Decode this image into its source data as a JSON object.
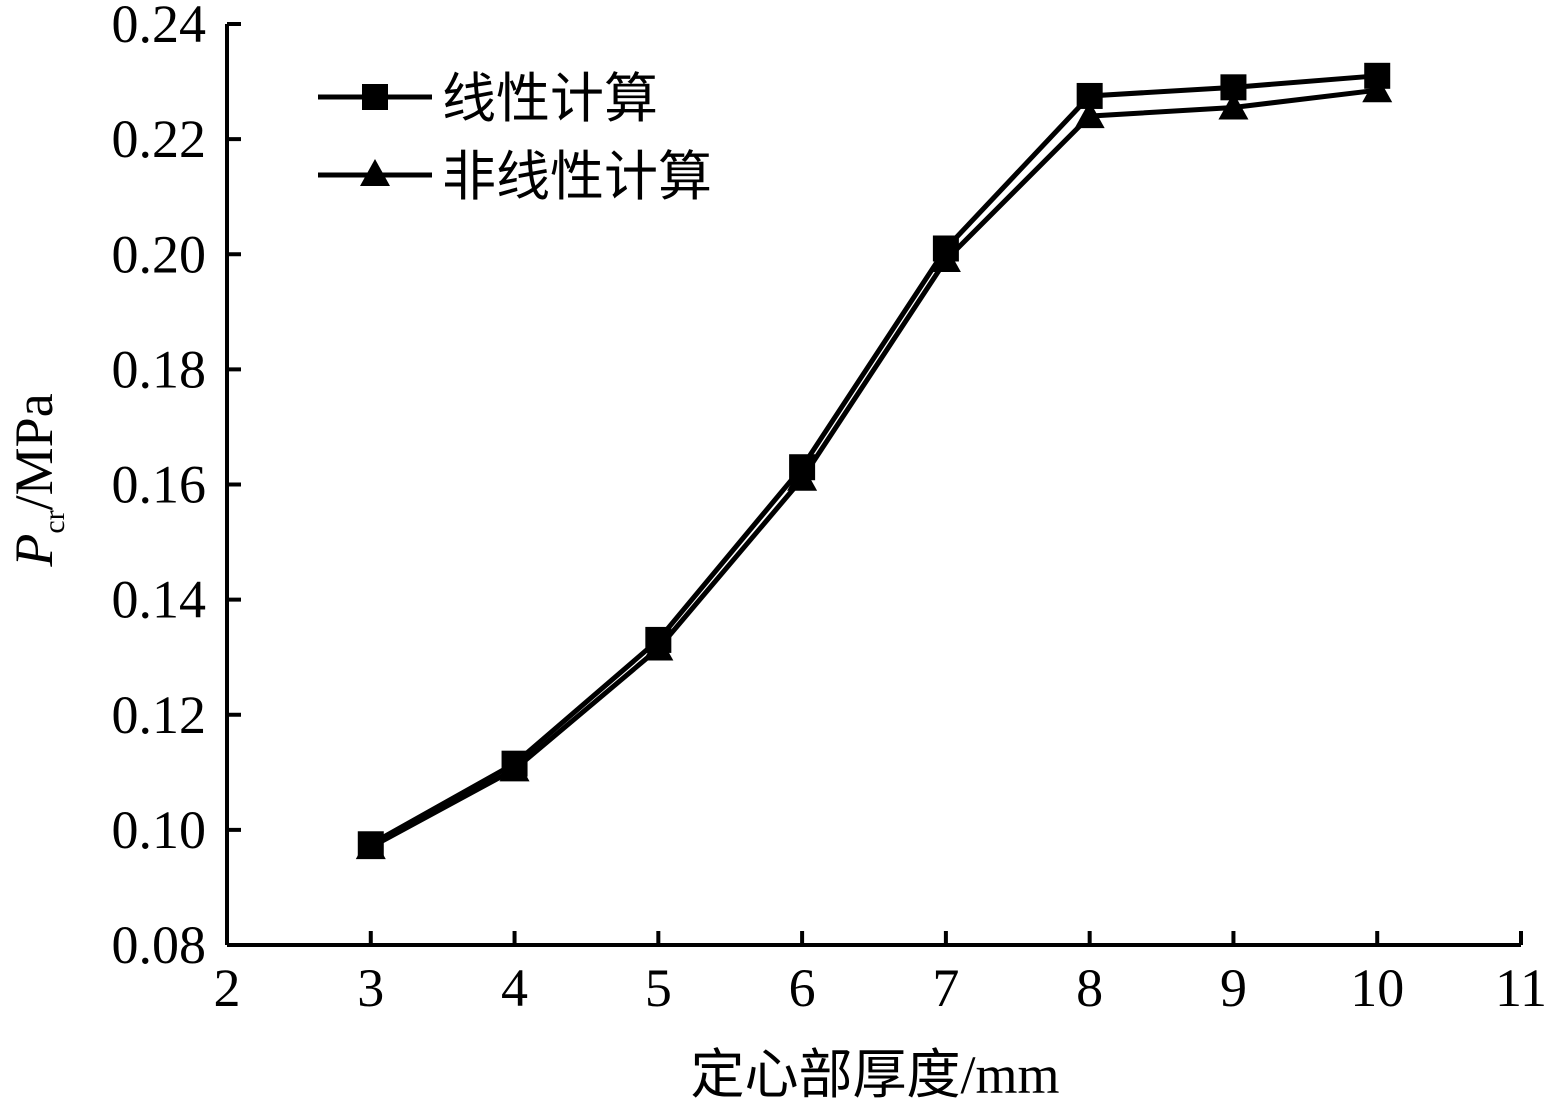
{
  "chart_data": {
    "type": "line",
    "xlabel": "定心部厚度/mm",
    "ylabel": {
      "main": "P",
      "subscript": "cr",
      "unit": "/MPa"
    },
    "xlim": [
      2,
      11
    ],
    "ylim": [
      0.08,
      0.24
    ],
    "xticks": [
      "2",
      "3",
      "4",
      "5",
      "6",
      "7",
      "8",
      "9",
      "10",
      "11"
    ],
    "yticks": [
      "0.08",
      "0.10",
      "0.12",
      "0.14",
      "0.16",
      "0.18",
      "0.20",
      "0.22",
      "0.24"
    ],
    "grid": false,
    "legend_position": "top-left",
    "x": [
      3,
      4,
      5,
      6,
      7,
      8,
      9,
      10
    ],
    "series": [
      {
        "name": "线性计算",
        "marker": "square",
        "color": "#000000",
        "values": [
          0.0975,
          0.1115,
          0.133,
          0.163,
          0.201,
          0.2275,
          0.229,
          0.231
        ]
      },
      {
        "name": "非线性计算",
        "marker": "triangle",
        "color": "#000000",
        "values": [
          0.097,
          0.1105,
          0.1315,
          0.161,
          0.199,
          0.224,
          0.2255,
          0.2285
        ]
      }
    ]
  }
}
